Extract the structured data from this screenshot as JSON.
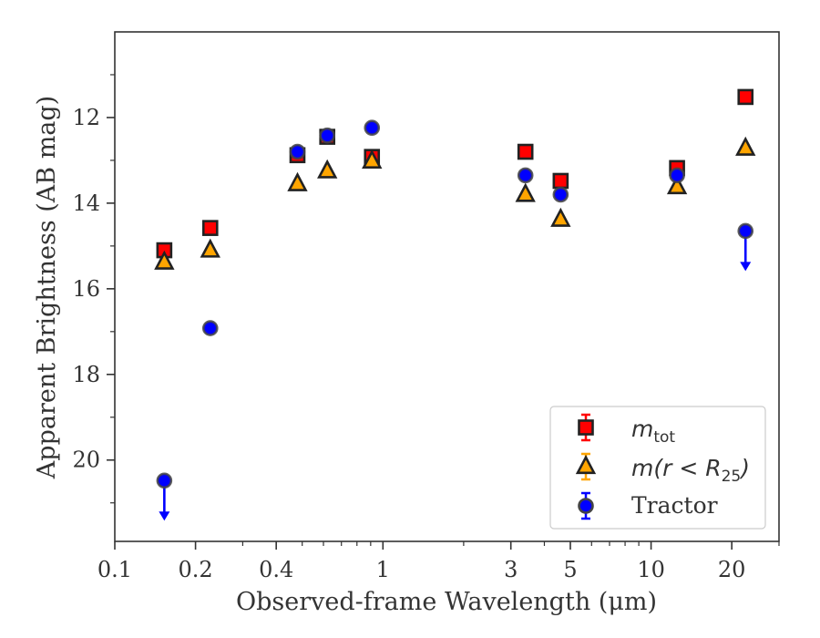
{
  "chart_data": {
    "type": "scatter",
    "xlabel": "Observed-frame Wavelength (μm)",
    "ylabel": "Apparent Brightness (AB mag)",
    "x_scale": "log",
    "xlim": [
      0.1,
      30
    ],
    "ylim": [
      21.9,
      10.0
    ],
    "y_inverted": true,
    "grid": false,
    "legend_position": "lower-right",
    "x_ticks": [
      {
        "value": 0.1,
        "label": "0.1"
      },
      {
        "value": 0.2,
        "label": "0.2"
      },
      {
        "value": 0.4,
        "label": "0.4"
      },
      {
        "value": 1,
        "label": "1"
      },
      {
        "value": 3,
        "label": "3"
      },
      {
        "value": 5,
        "label": "5"
      },
      {
        "value": 10,
        "label": "10"
      },
      {
        "value": 20,
        "label": "20"
      }
    ],
    "y_ticks": [
      {
        "value": 12,
        "label": "12"
      },
      {
        "value": 14,
        "label": "14"
      },
      {
        "value": 16,
        "label": "16"
      },
      {
        "value": 18,
        "label": "18"
      },
      {
        "value": 20,
        "label": "20"
      }
    ],
    "series": [
      {
        "name": "m_tot",
        "marker": "square",
        "color": "#ff0000",
        "edge_color": "#222222",
        "points": [
          {
            "x": 0.153,
            "y": 15.1
          },
          {
            "x": 0.227,
            "y": 14.58
          },
          {
            "x": 0.48,
            "y": 12.88
          },
          {
            "x": 0.62,
            "y": 12.45
          },
          {
            "x": 0.91,
            "y": 12.92
          },
          {
            "x": 3.4,
            "y": 12.8
          },
          {
            "x": 4.6,
            "y": 13.48
          },
          {
            "x": 12.5,
            "y": 13.18
          },
          {
            "x": 22.5,
            "y": 11.52
          }
        ]
      },
      {
        "name": "m(r<R25)",
        "marker": "triangle",
        "color": "#ffa500",
        "edge_color": "#222222",
        "points": [
          {
            "x": 0.153,
            "y": 15.38
          },
          {
            "x": 0.227,
            "y": 15.1
          },
          {
            "x": 0.48,
            "y": 13.55
          },
          {
            "x": 0.62,
            "y": 13.25
          },
          {
            "x": 0.91,
            "y": 13.02
          },
          {
            "x": 3.4,
            "y": 13.8
          },
          {
            "x": 4.6,
            "y": 14.38
          },
          {
            "x": 12.5,
            "y": 13.62
          },
          {
            "x": 22.5,
            "y": 12.72
          }
        ]
      },
      {
        "name": "Tractor",
        "marker": "circle",
        "color": "#0000ff",
        "edge_color": "#444444",
        "points": [
          {
            "x": 0.153,
            "y": 20.48,
            "upper_limit": true
          },
          {
            "x": 0.227,
            "y": 16.92
          },
          {
            "x": 0.48,
            "y": 12.8
          },
          {
            "x": 0.62,
            "y": 12.42
          },
          {
            "x": 0.91,
            "y": 12.24
          },
          {
            "x": 3.4,
            "y": 13.35
          },
          {
            "x": 4.6,
            "y": 13.8
          },
          {
            "x": 12.5,
            "y": 13.35
          },
          {
            "x": 22.5,
            "y": 14.65,
            "upper_limit": true
          }
        ]
      }
    ],
    "legend": [
      {
        "series": 0,
        "symbol": "m",
        "sub": "tot"
      },
      {
        "series": 1,
        "prefix": "m(r < R",
        "sub": "25",
        "suffix": ")"
      },
      {
        "series": 2,
        "label": "Tractor"
      }
    ]
  }
}
